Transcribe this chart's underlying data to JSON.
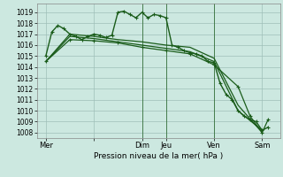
{
  "xlabel": "Pression niveau de la mer( hPa )",
  "background_color": "#cce8e0",
  "grid_color": "#9fbfb8",
  "line_color": "#1a5c1a",
  "ylim": [
    1007.5,
    1019.8
  ],
  "yticks": [
    1008,
    1009,
    1010,
    1011,
    1012,
    1013,
    1014,
    1015,
    1016,
    1017,
    1018,
    1019
  ],
  "xlim": [
    -0.5,
    40
  ],
  "day_positions": [
    1,
    9,
    17,
    21,
    29,
    37
  ],
  "day_labels": [
    "Mer",
    "",
    "Dim",
    "Jeu",
    "Ven",
    "Sam"
  ],
  "vline_positions": [
    17,
    21,
    29
  ],
  "series": [
    {
      "x": [
        1,
        2,
        3,
        4,
        5,
        6,
        7,
        8,
        9,
        10,
        11,
        12,
        13,
        14,
        15,
        16,
        17,
        18,
        19,
        20,
        21,
        22,
        23,
        24,
        25,
        26,
        27,
        28,
        29,
        30,
        31,
        32,
        33,
        34,
        35,
        36,
        37,
        38
      ],
      "y": [
        1015.0,
        1017.2,
        1017.8,
        1017.5,
        1017.0,
        1016.8,
        1016.5,
        1016.8,
        1017.0,
        1016.9,
        1016.7,
        1016.9,
        1019.0,
        1019.1,
        1018.8,
        1018.5,
        1019.0,
        1018.5,
        1018.8,
        1018.7,
        1018.5,
        1016.0,
        1015.8,
        1015.5,
        1015.3,
        1015.2,
        1015.0,
        1014.5,
        1014.4,
        1012.5,
        1011.5,
        1011.0,
        1010.0,
        1009.5,
        1009.2,
        1009.0,
        1008.2,
        1008.5
      ],
      "has_markers": true,
      "lw": 1.0
    },
    {
      "x": [
        1,
        5,
        9,
        13,
        17,
        21,
        25,
        29,
        33,
        37
      ],
      "y": [
        1014.5,
        1017.0,
        1016.8,
        1016.5,
        1016.3,
        1016.0,
        1015.8,
        1014.8,
        1010.5,
        1008.0
      ],
      "has_markers": false,
      "lw": 0.9
    },
    {
      "x": [
        1,
        5,
        9,
        13,
        17,
        21,
        25,
        29,
        33,
        37
      ],
      "y": [
        1014.5,
        1016.8,
        1016.6,
        1016.3,
        1016.0,
        1015.7,
        1015.4,
        1014.5,
        1010.0,
        1008.2
      ],
      "has_markers": false,
      "lw": 0.9
    },
    {
      "x": [
        1,
        5,
        9,
        13,
        17,
        21,
        25,
        29,
        33,
        35,
        37,
        38
      ],
      "y": [
        1014.5,
        1016.5,
        1016.4,
        1016.2,
        1015.8,
        1015.5,
        1015.2,
        1014.2,
        1012.2,
        1009.5,
        1008.0,
        1009.2
      ],
      "has_markers": true,
      "lw": 0.9
    }
  ]
}
